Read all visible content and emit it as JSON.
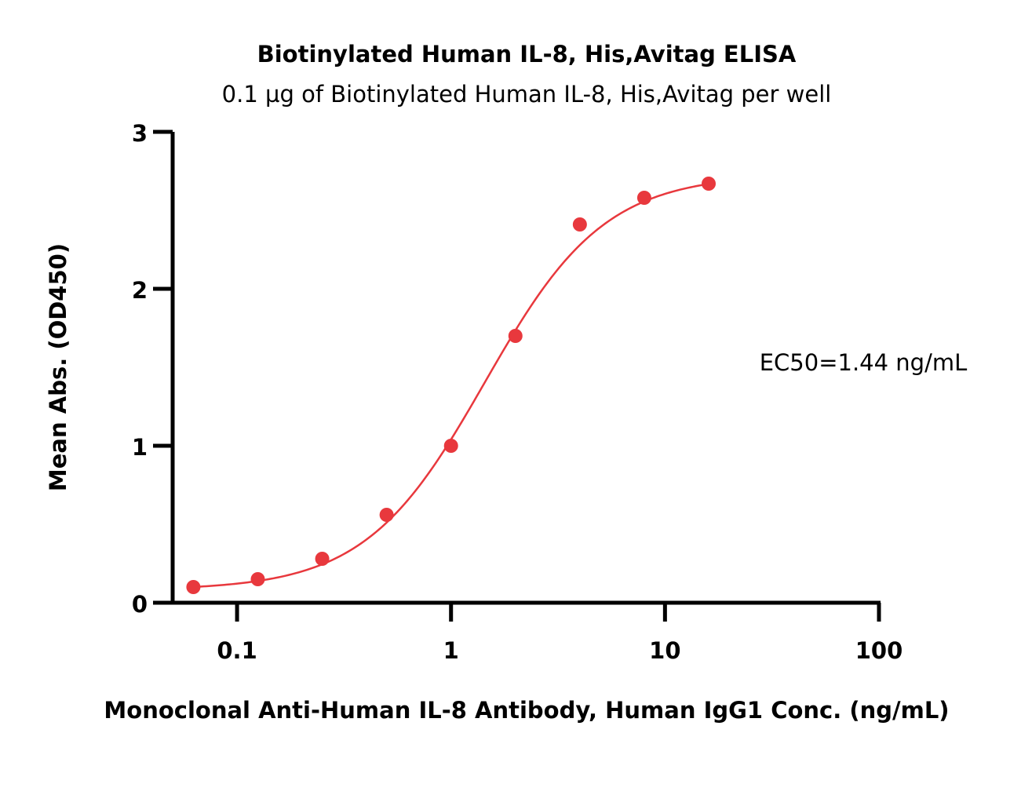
{
  "chart_data": {
    "type": "scatter",
    "title": "Biotinylated Human IL-8, His,Avitag ELISA",
    "subtitle": "0.1 µg of Biotinylated Human IL-8, His,Avitag per well",
    "xlabel": "Monoclonal Anti-Human IL-8 Antibody, Human IgG1 Conc. (ng/mL)",
    "ylabel": "Mean Abs. (OD450)",
    "xscale": "log",
    "xlim": [
      0.05,
      100
    ],
    "ylim": [
      0,
      3
    ],
    "x_ticks": [
      0.1,
      1,
      10,
      100
    ],
    "x_tick_labels": [
      "0.1",
      "1",
      "10",
      "100"
    ],
    "y_ticks": [
      0,
      1,
      2,
      3
    ],
    "y_tick_labels": [
      "0",
      "1",
      "2",
      "3"
    ],
    "grid": false,
    "color": "#e8383d",
    "series": [
      {
        "x": [
          0.0625,
          0.125,
          0.25,
          0.5,
          1,
          2,
          4,
          8,
          16
        ],
        "y": [
          0.1,
          0.15,
          0.28,
          0.56,
          1.0,
          1.7,
          2.41,
          2.58,
          2.67
        ]
      }
    ],
    "annotation": "EC50=1.44 ng/mL"
  }
}
